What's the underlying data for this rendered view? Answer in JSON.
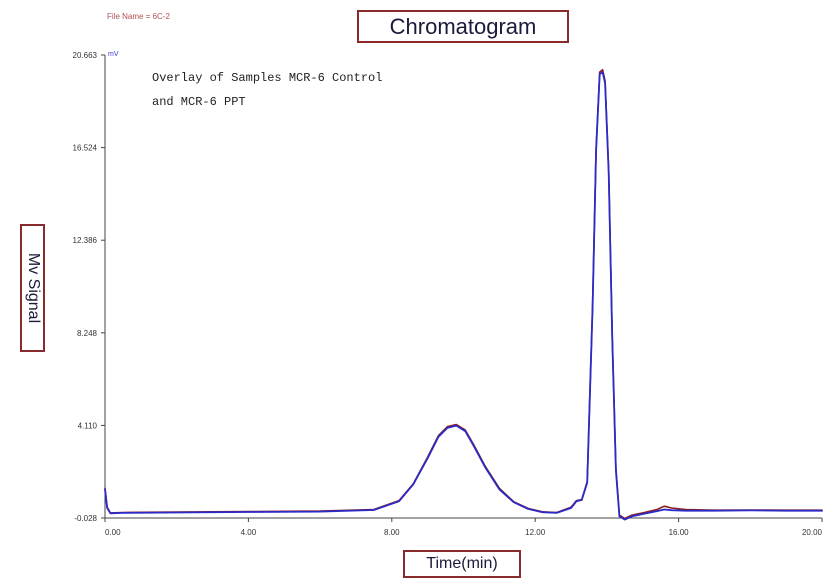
{
  "file_name": "File Name = 6C-2",
  "chart_data": {
    "type": "line",
    "title": "Chromatogram",
    "xlabel": "Time(min)",
    "ylabel": "Mv Signal",
    "annotation_lines": [
      "Overlay of Samples MCR-6 Control",
      "and MCR-6 PPT"
    ],
    "top_axis_label": "mV",
    "xlim": [
      0,
      20
    ],
    "ylim": [
      -0.028,
      20.663
    ],
    "x_ticks": [
      0,
      4,
      8,
      12,
      16,
      20
    ],
    "x_tick_labels": [
      "0.00",
      "4.00",
      "8.00",
      "12.00",
      "16.00",
      "20.00"
    ],
    "y_ticks": [
      -0.028,
      4.11,
      8.248,
      12.386,
      16.524,
      20.663
    ],
    "y_tick_labels": [
      "-0.028",
      "4.110",
      "8.248",
      "12.386",
      "16.524",
      "20.663"
    ],
    "grid": false,
    "series": [
      {
        "color": "#8b1a1a",
        "x": [
          0,
          0.06,
          0.15,
          0.5,
          2,
          4,
          6,
          7.5,
          8.2,
          8.6,
          9.0,
          9.3,
          9.55,
          9.8,
          10.05,
          10.3,
          10.6,
          11.0,
          11.4,
          11.8,
          12.2,
          12.6,
          13.0,
          13.15,
          13.3,
          13.45,
          13.6,
          13.7,
          13.8,
          13.88,
          13.95,
          14.05,
          14.15,
          14.25,
          14.35,
          14.5,
          14.7,
          15.0,
          15.4,
          15.6,
          15.8,
          16.2,
          17,
          18,
          19,
          20
        ],
        "y": [
          1.3,
          0.45,
          0.2,
          0.22,
          0.24,
          0.26,
          0.28,
          0.35,
          0.75,
          1.5,
          2.7,
          3.65,
          4.05,
          4.15,
          3.9,
          3.2,
          2.3,
          1.3,
          0.7,
          0.4,
          0.25,
          0.22,
          0.45,
          0.75,
          0.8,
          1.6,
          9.5,
          16.5,
          19.9,
          20.0,
          19.5,
          15.5,
          8.0,
          2.2,
          0.1,
          -0.05,
          0.1,
          0.2,
          0.35,
          0.5,
          0.42,
          0.35,
          0.32,
          0.33,
          0.32,
          0.32
        ]
      },
      {
        "color": "#2b2bc8",
        "x": [
          0,
          0.06,
          0.15,
          0.5,
          2,
          4,
          6,
          7.5,
          8.2,
          8.6,
          9.0,
          9.3,
          9.55,
          9.8,
          10.05,
          10.3,
          10.6,
          11.0,
          11.4,
          11.8,
          12.2,
          12.6,
          13.0,
          13.15,
          13.3,
          13.45,
          13.6,
          13.7,
          13.8,
          13.88,
          13.95,
          14.05,
          14.15,
          14.25,
          14.35,
          14.5,
          14.7,
          15.0,
          15.4,
          15.6,
          15.8,
          16.2,
          17,
          18,
          19,
          20
        ],
        "y": [
          1.25,
          0.42,
          0.18,
          0.2,
          0.22,
          0.24,
          0.26,
          0.33,
          0.72,
          1.48,
          2.65,
          3.6,
          4.0,
          4.1,
          3.85,
          3.15,
          2.25,
          1.25,
          0.68,
          0.38,
          0.23,
          0.2,
          0.42,
          0.72,
          0.78,
          1.55,
          9.4,
          16.4,
          19.8,
          19.9,
          19.4,
          15.4,
          7.9,
          2.1,
          0.05,
          -0.1,
          0.05,
          0.15,
          0.28,
          0.35,
          0.32,
          0.3,
          0.3,
          0.31,
          0.3,
          0.3
        ]
      }
    ]
  }
}
